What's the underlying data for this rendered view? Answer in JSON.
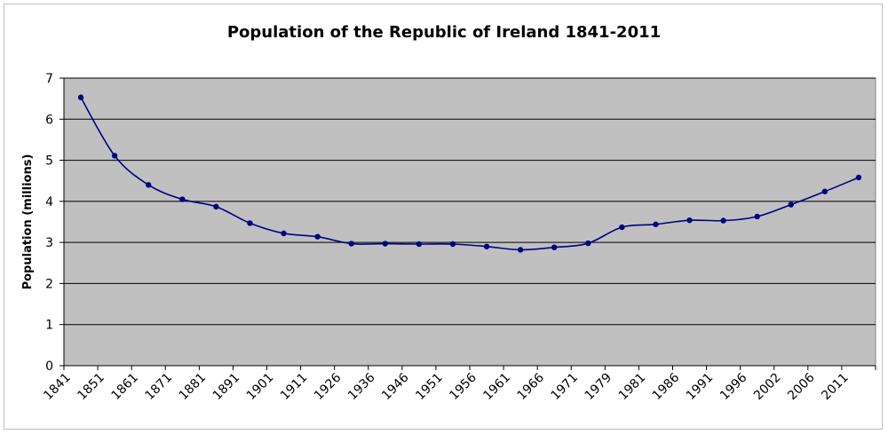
{
  "chart_data": {
    "type": "line",
    "title": "Population of the Republic of Ireland 1841-2011",
    "xlabel": "",
    "ylabel": "Population (millions)",
    "ylim": [
      0,
      7
    ],
    "yticks": [
      "0",
      "1",
      "2",
      "3",
      "4",
      "5",
      "6",
      "7"
    ],
    "grid": true,
    "legend": "none",
    "categories": [
      "1841",
      "1851",
      "1861",
      "1871",
      "1881",
      "1891",
      "1901",
      "1911",
      "1926",
      "1936",
      "1946",
      "1951",
      "1956",
      "1961",
      "1966",
      "1971",
      "1979",
      "1981",
      "1986",
      "1991",
      "1996",
      "2002",
      "2006",
      "2011"
    ],
    "series": [
      {
        "values": [
          6.53,
          5.11,
          4.4,
          4.05,
          3.87,
          3.47,
          3.22,
          3.14,
          2.97,
          2.97,
          2.96,
          2.96,
          2.9,
          2.82,
          2.88,
          2.98,
          3.37,
          3.44,
          3.54,
          3.53,
          3.63,
          3.92,
          4.24,
          4.58
        ]
      }
    ],
    "colors": {
      "plot_background": "#c0c0c0",
      "line": "#000080",
      "grid": "#000000"
    }
  }
}
